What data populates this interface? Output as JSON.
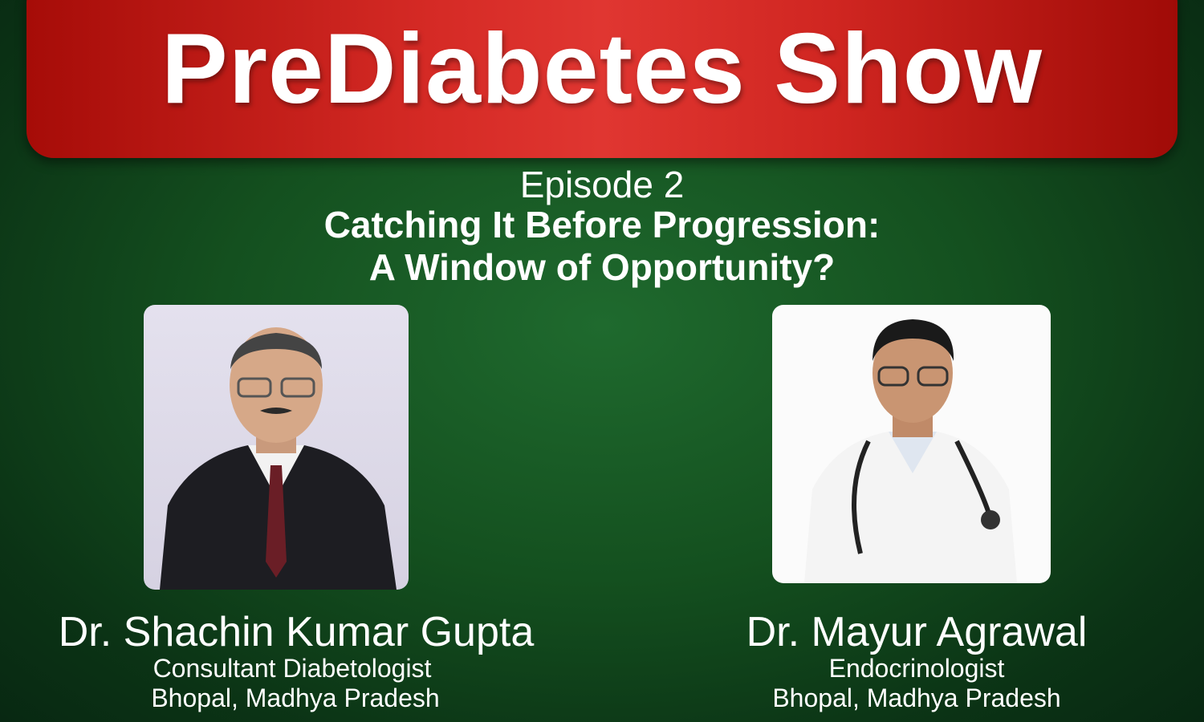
{
  "header": {
    "title": "PreDiabetes Show"
  },
  "episode": {
    "label": "Episode 2",
    "title_line1": "Catching It Before Progression:",
    "title_line2": "A Window of Opportunity?"
  },
  "speakers": [
    {
      "name": "Dr. Shachin Kumar Gupta",
      "role": "Consultant Diabetologist",
      "location": "Bhopal, Madhya Pradesh"
    },
    {
      "name": "Dr. Mayur Agrawal",
      "role": "Endocrinologist",
      "location": "Bhopal, Madhya Pradesh"
    }
  ],
  "colors": {
    "banner": "#d52a25",
    "background": "#14501f",
    "text": "#ffffff"
  }
}
